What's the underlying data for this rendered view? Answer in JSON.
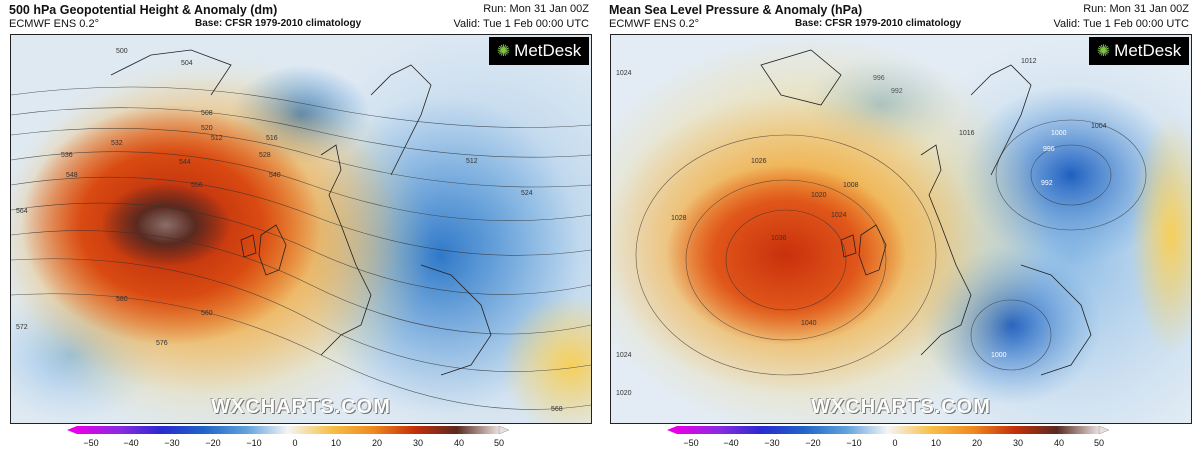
{
  "left": {
    "title": "500 hPa Geopotential Height & Anomaly (dm)",
    "model": "ECMWF ENS 0.2°",
    "base": "Base: CFSR 1979-2010 climatology",
    "run": "Run: Mon 31 Jan 00Z",
    "valid": "Valid: Tue 1 Feb 00:00 UTC",
    "contour_labels": [
      "500",
      "504",
      "508",
      "512",
      "516",
      "520",
      "524",
      "528",
      "532",
      "536",
      "540",
      "544",
      "548",
      "556",
      "560",
      "564",
      "568",
      "572",
      "576",
      "580",
      "512"
    ]
  },
  "right": {
    "title": "Mean Sea Level Pressure & Anomaly (hPa)",
    "model": "ECMWF ENS 0.2°",
    "base": "Base: CFSR 1979-2010 climatology",
    "run": "Run: Mon 31 Jan 00Z",
    "valid": "Valid: Tue 1 Feb 00:00 UTC",
    "contour_labels": [
      "996",
      "992",
      "1000",
      "1004",
      "1008",
      "1012",
      "1016",
      "1020",
      "1024",
      "1026",
      "1028",
      "1036",
      "1040",
      "1024",
      "1020",
      "1000",
      "992",
      "996",
      "1024"
    ]
  },
  "branding": {
    "logo": "MetDesk",
    "watermark": "WXCHARTS.COM",
    "logo_icon": "globe-icon"
  },
  "colorbar": {
    "ticks": [
      "−50",
      "−40",
      "−30",
      "−20",
      "−10",
      "0",
      "10",
      "20",
      "30",
      "40",
      "50"
    ],
    "colors": [
      "#e600e6",
      "#8a2be2",
      "#2a2ad0",
      "#1f64c8",
      "#5fa0dc",
      "#b9d6ee",
      "#f7f0cf",
      "#f6c14a",
      "#ef8a1e",
      "#d73c0a",
      "#a61a08",
      "#5a2a20",
      "#a08c86",
      "#e8e0de"
    ]
  }
}
